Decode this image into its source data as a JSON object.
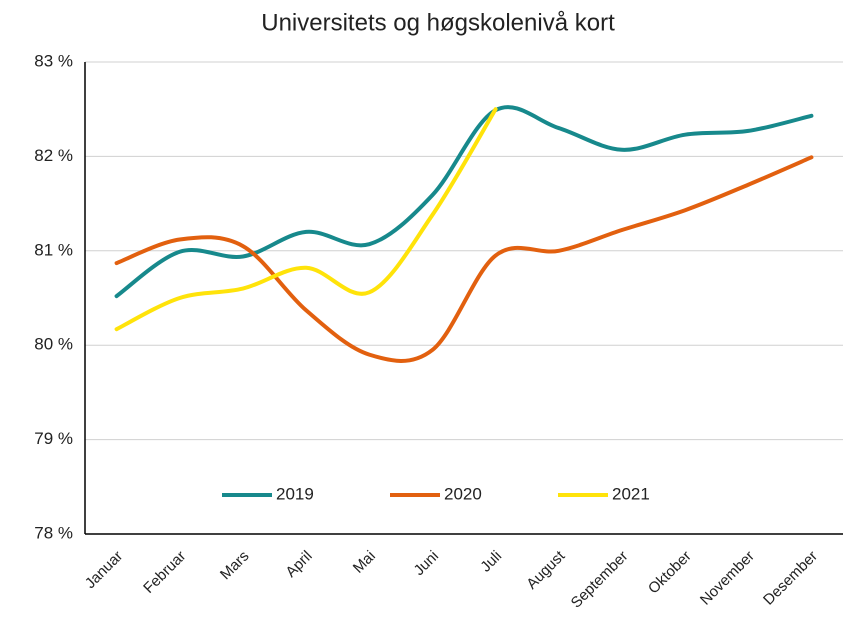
{
  "chart_data": {
    "type": "line",
    "title": "Universitets og høgskolenivå kort",
    "categories": [
      "Januar",
      "Februar",
      "Mars",
      "April",
      "Mai",
      "Juni",
      "Juli",
      "August",
      "September",
      "Oktober",
      "November",
      "Desember"
    ],
    "series": [
      {
        "name": "2019",
        "color": "#17898c",
        "values": [
          80.52,
          80.99,
          80.94,
          81.2,
          81.07,
          81.59,
          82.49,
          82.3,
          82.07,
          82.23,
          82.27,
          82.43
        ]
      },
      {
        "name": "2020",
        "color": "#e2600f",
        "values": [
          80.87,
          81.12,
          81.05,
          80.37,
          79.9,
          79.95,
          80.95,
          81.0,
          81.22,
          81.43,
          81.7,
          81.99
        ]
      },
      {
        "name": "2021",
        "color": "#ffe30a",
        "values": [
          80.17,
          80.5,
          80.6,
          80.82,
          80.56,
          81.38,
          82.5,
          null,
          null,
          null,
          null,
          null
        ]
      }
    ],
    "ylim": [
      78,
      83
    ],
    "yticks": [
      {
        "value": 78,
        "label": "78 %"
      },
      {
        "value": 79,
        "label": "79 %"
      },
      {
        "value": 80,
        "label": "80 %"
      },
      {
        "value": 81,
        "label": "81 %"
      },
      {
        "value": 82,
        "label": "82 %"
      },
      {
        "value": 83,
        "label": "83 %"
      }
    ],
    "grid": true,
    "legend": "bottom"
  }
}
